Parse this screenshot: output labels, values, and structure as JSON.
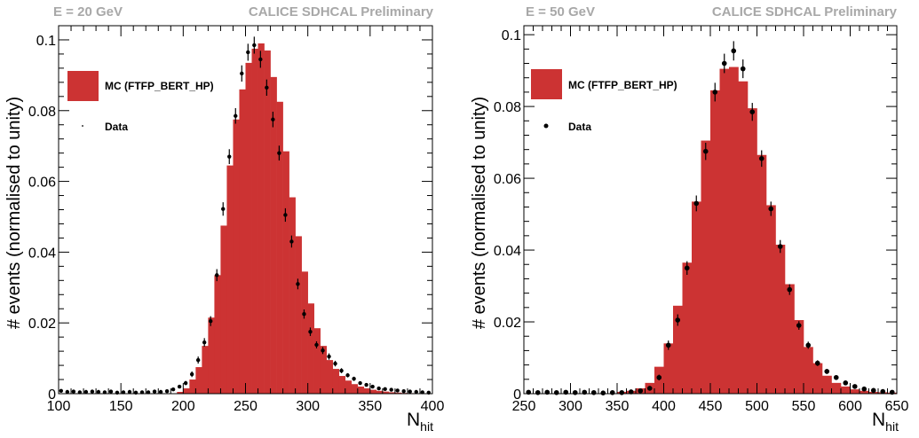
{
  "chart_data": [
    {
      "type": "bar",
      "header_left": "E = 20 GeV",
      "header_right": "CALICE SDHCAL Preliminary",
      "ylabel": "# events (normalised to unity)",
      "xlabel_main": "N",
      "xlabel_sub": "hit",
      "xlim": [
        100,
        400
      ],
      "ylim": [
        0,
        0.104
      ],
      "xticks": [
        100,
        150,
        200,
        250,
        300,
        350,
        400
      ],
      "yticks": [
        0,
        0.02,
        0.04,
        0.06,
        0.08,
        0.1
      ],
      "ytick_labels": [
        "0",
        "0.02",
        "0.04",
        "0.06",
        "0.08",
        "0.1"
      ],
      "grid": false,
      "legend_position": "upper-left",
      "colors": {
        "mc": "#cc3333",
        "data": "#000000"
      },
      "series": [
        {
          "name": "MC (FTFP_BERT_HP)",
          "kind": "histogram",
          "bin_edges": [
            195,
            200,
            205,
            210,
            215,
            220,
            225,
            230,
            235,
            240,
            245,
            250,
            255,
            260,
            265,
            270,
            275,
            280,
            285,
            290,
            295,
            300,
            305,
            310,
            315,
            320,
            325,
            330,
            335,
            340,
            345,
            350,
            355,
            360,
            365,
            370,
            375,
            380,
            385,
            390,
            395,
            400
          ],
          "values": [
            0.0005,
            0.0015,
            0.004,
            0.0075,
            0.0135,
            0.0215,
            0.0335,
            0.0475,
            0.0645,
            0.0775,
            0.086,
            0.0935,
            0.0975,
            0.099,
            0.097,
            0.0895,
            0.0825,
            0.0685,
            0.0555,
            0.0445,
            0.0345,
            0.0255,
            0.0185,
            0.0135,
            0.0095,
            0.007,
            0.005,
            0.0037,
            0.0027,
            0.002,
            0.0015,
            0.0011,
            0.0008,
            0.0006,
            0.0004,
            0.0003,
            0.0002,
            0.00015,
            0.0001,
            0.0001,
            0.0001
          ]
        },
        {
          "name": "Data",
          "kind": "points",
          "x": [
            102,
            107,
            112,
            117,
            122,
            127,
            132,
            137,
            142,
            147,
            152,
            157,
            162,
            167,
            172,
            177,
            182,
            187,
            192,
            197,
            202,
            207,
            212,
            217,
            222,
            227,
            232,
            237,
            242,
            247,
            252,
            257,
            262,
            267,
            272,
            277,
            282,
            287,
            292,
            297,
            302,
            307,
            312,
            317,
            322,
            327,
            332,
            337,
            342,
            347,
            352,
            357,
            362,
            367,
            372,
            377,
            382,
            387,
            392,
            397
          ],
          "y": [
            0.0008,
            0.0005,
            0.0006,
            0.0004,
            0.0005,
            0.0006,
            0.0005,
            0.0004,
            0.0006,
            0.0003,
            0.0004,
            0.0005,
            0.0003,
            0.0004,
            0.0004,
            0.0006,
            0.0005,
            0.0007,
            0.0012,
            0.002,
            0.003,
            0.0055,
            0.0095,
            0.0145,
            0.0205,
            0.0335,
            0.0522,
            0.067,
            0.0785,
            0.0905,
            0.0965,
            0.0985,
            0.0945,
            0.0865,
            0.0775,
            0.068,
            0.0505,
            0.043,
            0.031,
            0.0225,
            0.0175,
            0.0138,
            0.0122,
            0.0105,
            0.0085,
            0.0065,
            0.0052,
            0.0042,
            0.003,
            0.0025,
            0.002,
            0.0015,
            0.0013,
            0.0011,
            0.0009,
            0.0007,
            0.0006,
            0.0005,
            0.0004,
            0.0003
          ],
          "yerr": [
            0.0004,
            0.0003,
            0.0003,
            0.0003,
            0.0003,
            0.0003,
            0.0003,
            0.0003,
            0.0003,
            0.0002,
            0.0003,
            0.0003,
            0.0002,
            0.0003,
            0.0003,
            0.0003,
            0.0003,
            0.0003,
            0.0004,
            0.0005,
            0.0006,
            0.0008,
            0.001,
            0.0012,
            0.0014,
            0.0017,
            0.0019,
            0.0021,
            0.0022,
            0.0023,
            0.0024,
            0.0024,
            0.0024,
            0.0023,
            0.0022,
            0.0021,
            0.0019,
            0.0017,
            0.0015,
            0.0013,
            0.0012,
            0.001,
            0.001,
            0.0009,
            0.0008,
            0.0007,
            0.0006,
            0.0006,
            0.0005,
            0.0005,
            0.0004,
            0.0004,
            0.0003,
            0.0003,
            0.0003,
            0.0003,
            0.0002,
            0.0002,
            0.0002,
            0.0002
          ]
        }
      ]
    },
    {
      "type": "bar",
      "header_left": "E = 50 GeV",
      "header_right": "CALICE SDHCAL Preliminary",
      "ylabel": "# events (normalised to unity)",
      "xlabel_main": "N",
      "xlabel_sub": "hit",
      "xlim": [
        250,
        650
      ],
      "ylim": [
        0,
        0.1025
      ],
      "xticks": [
        250,
        300,
        350,
        400,
        450,
        500,
        550,
        600,
        650
      ],
      "yticks": [
        0,
        0.02,
        0.04,
        0.06,
        0.08,
        0.1
      ],
      "ytick_labels": [
        "0",
        "0.02",
        "0.04",
        "0.06",
        "0.08",
        "0.1"
      ],
      "grid": false,
      "legend_position": "upper-left",
      "colors": {
        "mc": "#cc3333",
        "data": "#000000"
      },
      "series": [
        {
          "name": "MC (FTFP_BERT_HP)",
          "kind": "histogram",
          "bin_edges": [
            350,
            360,
            370,
            380,
            390,
            400,
            410,
            420,
            430,
            440,
            450,
            460,
            470,
            480,
            490,
            500,
            510,
            520,
            530,
            540,
            550,
            560,
            570,
            580,
            590,
            600,
            610,
            620,
            630,
            640,
            650
          ],
          "values": [
            0.0005,
            0.0008,
            0.0015,
            0.003,
            0.0075,
            0.014,
            0.0245,
            0.0365,
            0.0535,
            0.0705,
            0.0845,
            0.0905,
            0.091,
            0.087,
            0.0795,
            0.0665,
            0.0525,
            0.0415,
            0.0305,
            0.0205,
            0.013,
            0.0085,
            0.005,
            0.003,
            0.002,
            0.0012,
            0.0008,
            0.0005,
            0.0004,
            0.0003
          ]
        },
        {
          "name": "Data",
          "kind": "points",
          "x": [
            255,
            265,
            275,
            285,
            295,
            305,
            315,
            325,
            335,
            345,
            355,
            365,
            375,
            385,
            395,
            405,
            415,
            425,
            435,
            445,
            455,
            465,
            475,
            485,
            495,
            505,
            515,
            525,
            535,
            545,
            555,
            565,
            575,
            585,
            595,
            605,
            615,
            625,
            635,
            645
          ],
          "y": [
            0.0004,
            0.0003,
            0.0004,
            0.0003,
            0.0004,
            0.0003,
            0.0004,
            0.0003,
            0.0002,
            0.0003,
            0.0003,
            0.0005,
            0.0008,
            0.0015,
            0.0045,
            0.0135,
            0.0205,
            0.035,
            0.053,
            0.0675,
            0.084,
            0.092,
            0.0955,
            0.0905,
            0.0785,
            0.0655,
            0.0515,
            0.041,
            0.029,
            0.019,
            0.0135,
            0.0085,
            0.0062,
            0.0045,
            0.003,
            0.002,
            0.0013,
            0.0009,
            0.0006,
            0.0004
          ],
          "yerr": [
            0.0002,
            0.0002,
            0.0002,
            0.0002,
            0.0002,
            0.0002,
            0.0002,
            0.0002,
            0.0002,
            0.0002,
            0.0002,
            0.0003,
            0.0004,
            0.0005,
            0.0008,
            0.0013,
            0.0016,
            0.0019,
            0.0022,
            0.0024,
            0.0026,
            0.0027,
            0.0027,
            0.0026,
            0.0025,
            0.0023,
            0.002,
            0.0018,
            0.0015,
            0.0012,
            0.001,
            0.0008,
            0.0007,
            0.0006,
            0.0005,
            0.0004,
            0.0003,
            0.0003,
            0.0002,
            0.0002
          ]
        }
      ]
    }
  ]
}
